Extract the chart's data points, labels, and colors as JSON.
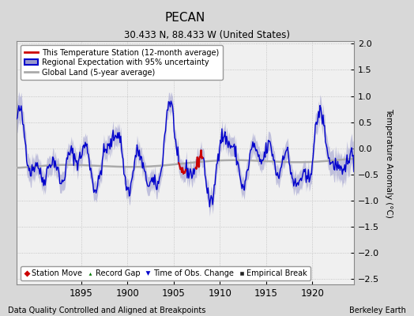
{
  "title": "PECAN",
  "subtitle": "30.433 N, 88.433 W (United States)",
  "ylabel": "Temperature Anomaly (°C)",
  "footer_left": "Data Quality Controlled and Aligned at Breakpoints",
  "footer_right": "Berkeley Earth",
  "xlim": [
    1888.0,
    1924.5
  ],
  "ylim": [
    -2.6,
    2.05
  ],
  "yticks": [
    -2.5,
    -2.0,
    -1.5,
    -1.0,
    -0.5,
    0.0,
    0.5,
    1.0,
    1.5,
    2.0
  ],
  "xticks": [
    1895,
    1900,
    1905,
    1910,
    1915,
    1920
  ],
  "bg_color": "#d8d8d8",
  "plot_bg_color": "#f0f0f0",
  "grid_color": "#cccccc",
  "regional_color": "#0000cc",
  "regional_fill_color": "#9999cc",
  "station_color": "#cc0000",
  "global_color": "#aaaaaa",
  "seed": 42
}
